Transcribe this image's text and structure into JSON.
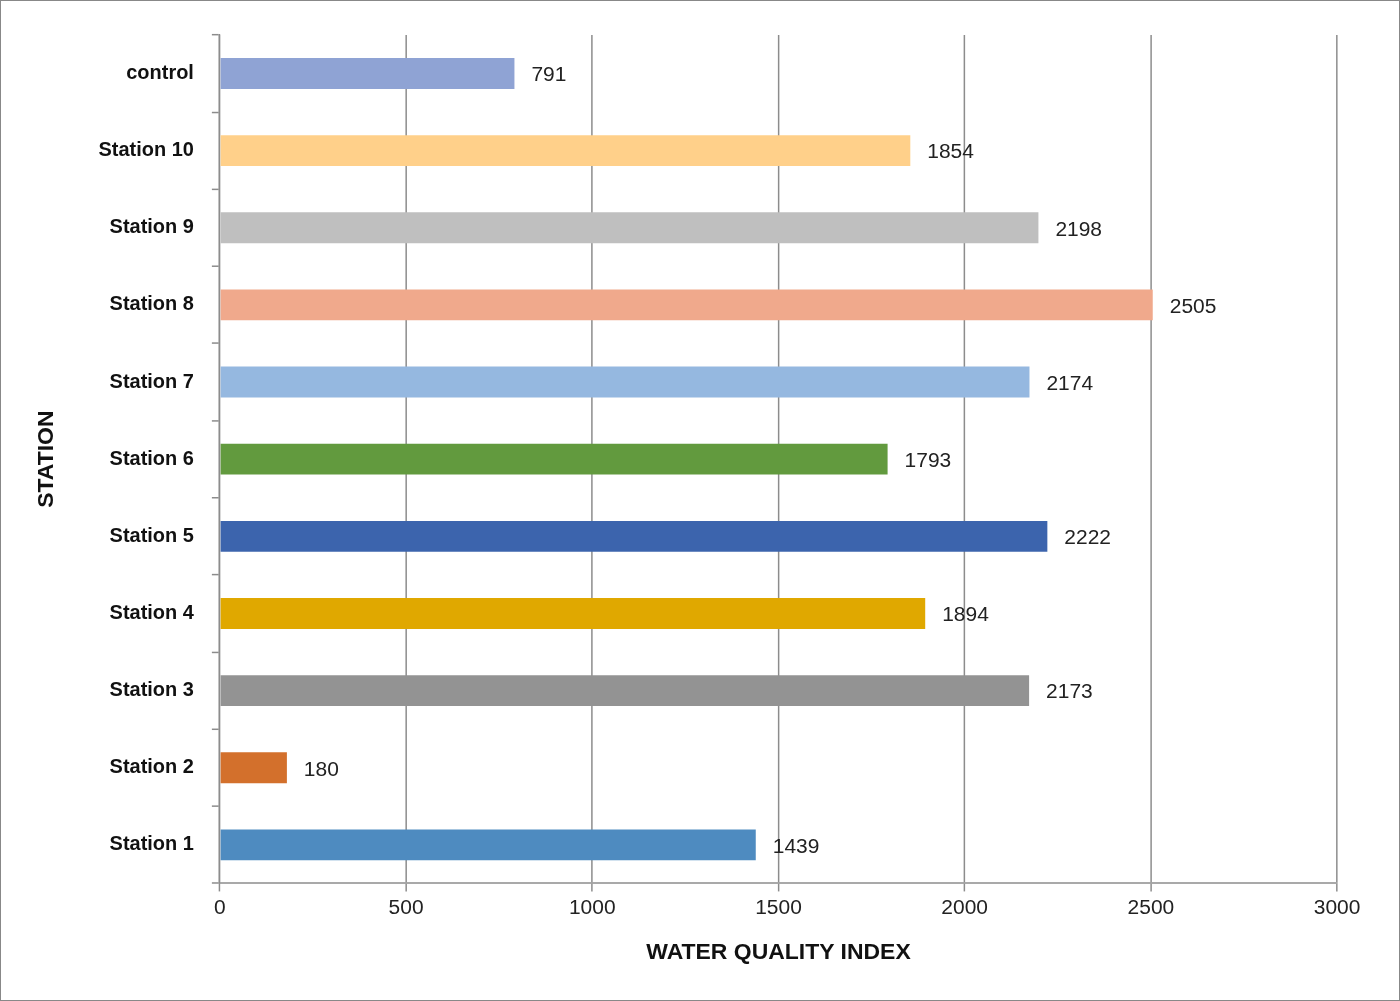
{
  "chart_data": {
    "type": "bar",
    "orientation": "horizontal",
    "xlabel": "WATER QUALITY INDEX",
    "ylabel": "STATION",
    "categories": [
      "control",
      "Station 10",
      "Station 9",
      "Station 8",
      "Station 7",
      "Station 6",
      "Station 5",
      "Station 4",
      "Station 3",
      "Station 2",
      "Station 1"
    ],
    "values": [
      791,
      1854,
      2198,
      2505,
      2174,
      1793,
      2222,
      1894,
      2173,
      180,
      1439
    ],
    "colors": [
      "#8fa3d4",
      "#ffd08a",
      "#bfbfbf",
      "#f0a98c",
      "#95b8e0",
      "#629a3e",
      "#3c64ad",
      "#e0a800",
      "#939393",
      "#d3702c",
      "#4e8bc0"
    ],
    "xlim": [
      0,
      3000
    ],
    "xticks": [
      0,
      500,
      1000,
      1500,
      2000,
      2500,
      3000
    ],
    "grid": "x",
    "legend": false,
    "data_labels": true
  }
}
